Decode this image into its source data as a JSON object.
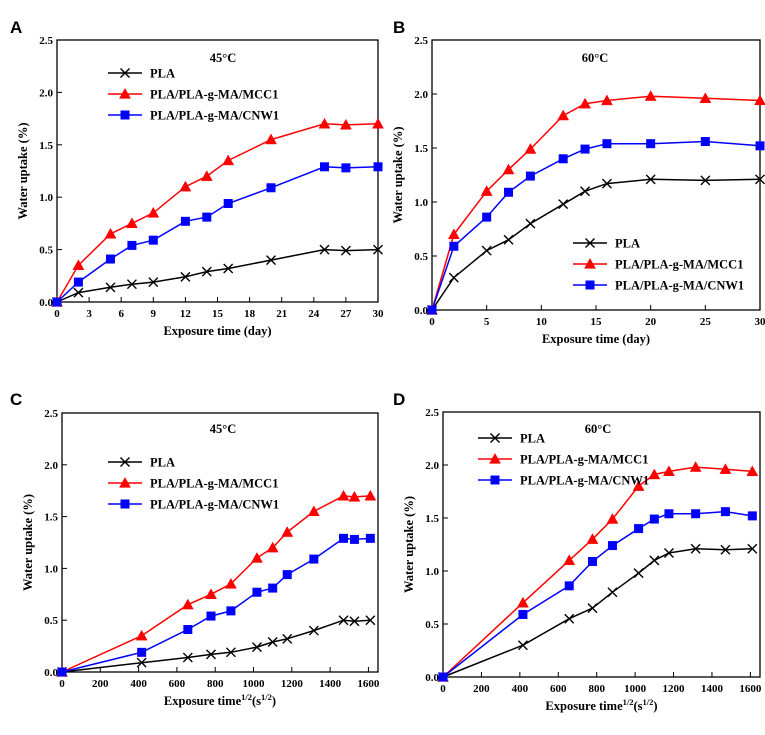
{
  "series_styles": [
    {
      "name": "PLA",
      "color": "#000000",
      "marker": "x-mark"
    },
    {
      "name": "PLA/PLA-g-MA/MCC1",
      "color": "#ff0000",
      "marker": "triangle"
    },
    {
      "name": "PLA/PLA-g-MA/CNW1",
      "color": "#0000ff",
      "marker": "square"
    }
  ],
  "chart_data": [
    {
      "panel": "A",
      "type": "line",
      "title": "45°C",
      "xlabel": "Exposure time (day)",
      "ylabel": "Water uptake (%)",
      "xlim": [
        0,
        30
      ],
      "ylim": [
        0,
        2.5
      ],
      "xticks": [
        "0",
        "3",
        "6",
        "9",
        "12",
        "15",
        "18",
        "21",
        "24",
        "27",
        "30"
      ],
      "yticks": [
        "0.0",
        "0.5",
        "1.0",
        "1.5",
        "2.0",
        "2.5"
      ],
      "legend_position": "top-left",
      "series": [
        {
          "name": "PLA",
          "x": [
            0,
            2,
            5,
            7,
            9,
            12,
            14,
            16,
            20,
            25,
            27,
            30
          ],
          "y": [
            0,
            0.09,
            0.14,
            0.17,
            0.19,
            0.24,
            0.29,
            0.32,
            0.4,
            0.5,
            0.49,
            0.5
          ]
        },
        {
          "name": "PLA/PLA-g-MA/MCC1",
          "x": [
            0,
            2,
            5,
            7,
            9,
            12,
            14,
            16,
            20,
            25,
            27,
            30
          ],
          "y": [
            0,
            0.35,
            0.65,
            0.75,
            0.85,
            1.1,
            1.2,
            1.35,
            1.55,
            1.7,
            1.69,
            1.7
          ]
        },
        {
          "name": "PLA/PLA-g-MA/CNW1",
          "x": [
            0,
            2,
            5,
            7,
            9,
            12,
            14,
            16,
            20,
            25,
            27,
            30
          ],
          "y": [
            0,
            0.19,
            0.41,
            0.54,
            0.59,
            0.77,
            0.81,
            0.94,
            1.09,
            1.29,
            1.28,
            1.29
          ]
        }
      ]
    },
    {
      "panel": "B",
      "type": "line",
      "title": "60°C",
      "xlabel": "Exposure time (day)",
      "ylabel": "Water uptake (%)",
      "xlim": [
        0,
        30
      ],
      "ylim": [
        0,
        2.5
      ],
      "xticks": [
        "0",
        "5",
        "10",
        "15",
        "20",
        "25",
        "30"
      ],
      "yticks": [
        "0.0",
        "0.5",
        "1.0",
        "1.5",
        "2.0",
        "2.5"
      ],
      "legend_position": "bottom-right",
      "series": [
        {
          "name": "PLA",
          "x": [
            0,
            2,
            5,
            7,
            9,
            12,
            14,
            16,
            20,
            25,
            30
          ],
          "y": [
            0,
            0.3,
            0.55,
            0.65,
            0.8,
            0.98,
            1.1,
            1.17,
            1.21,
            1.2,
            1.21
          ]
        },
        {
          "name": "PLA/PLA-g-MA/MCC1",
          "x": [
            0,
            2,
            5,
            7,
            9,
            12,
            14,
            16,
            20,
            25,
            30
          ],
          "y": [
            0,
            0.7,
            1.1,
            1.3,
            1.49,
            1.8,
            1.91,
            1.94,
            1.98,
            1.96,
            1.94
          ]
        },
        {
          "name": "PLA/PLA-g-MA/CNW1",
          "x": [
            0,
            2,
            5,
            7,
            9,
            12,
            14,
            16,
            20,
            25,
            30
          ],
          "y": [
            0,
            0.59,
            0.86,
            1.09,
            1.24,
            1.4,
            1.49,
            1.54,
            1.54,
            1.56,
            1.52
          ]
        }
      ]
    },
    {
      "panel": "C",
      "type": "line",
      "title": "45°C",
      "xlabel": "Exposure time",
      "xlabel_unit": "(s",
      "xlabel_sup": "1/2",
      "xlabel_end": ")",
      "xlabel_sup_time": "1/2",
      "ylabel": "Water uptake (%)",
      "xlim": [
        0,
        1650
      ],
      "ylim": [
        0,
        2.5
      ],
      "xticks": [
        "0",
        "200",
        "400",
        "600",
        "800",
        "1000",
        "1200",
        "1400",
        "1600"
      ],
      "yticks": [
        "0.0",
        "0.5",
        "1.0",
        "1.5",
        "2.0",
        "2.5"
      ],
      "legend_position": "center-left",
      "series": [
        {
          "name": "PLA",
          "x": [
            0,
            416,
            657,
            778,
            882,
            1018,
            1100,
            1176,
            1315,
            1470,
            1527,
            1610
          ],
          "y": [
            0,
            0.09,
            0.14,
            0.17,
            0.19,
            0.24,
            0.29,
            0.32,
            0.4,
            0.5,
            0.49,
            0.5
          ]
        },
        {
          "name": "PLA/PLA-g-MA/MCC1",
          "x": [
            0,
            416,
            657,
            778,
            882,
            1018,
            1100,
            1176,
            1315,
            1470,
            1527,
            1610
          ],
          "y": [
            0,
            0.35,
            0.65,
            0.75,
            0.85,
            1.1,
            1.2,
            1.35,
            1.55,
            1.7,
            1.69,
            1.7
          ]
        },
        {
          "name": "PLA/PLA-g-MA/CNW1",
          "x": [
            0,
            416,
            657,
            778,
            882,
            1018,
            1100,
            1176,
            1315,
            1470,
            1527,
            1610
          ],
          "y": [
            0,
            0.19,
            0.41,
            0.54,
            0.59,
            0.77,
            0.81,
            0.94,
            1.09,
            1.29,
            1.28,
            1.29
          ]
        }
      ]
    },
    {
      "panel": "D",
      "type": "line",
      "title": "60°C",
      "xlabel": "Exposure time",
      "xlabel_unit": "(s",
      "xlabel_sup": "1/2",
      "xlabel_end": ")",
      "xlabel_sup_time": "1/2",
      "ylabel": "Water uptake (%)",
      "xlim": [
        0,
        1650
      ],
      "ylim": [
        0,
        2.5
      ],
      "xticks": [
        "0",
        "200",
        "400",
        "600",
        "800",
        "1000",
        "1200",
        "1400",
        "1600"
      ],
      "yticks": [
        "0.0",
        "0.5",
        "1.0",
        "1.5",
        "2.0",
        "2.5"
      ],
      "legend_position": "top-left",
      "series": [
        {
          "name": "PLA",
          "x": [
            0,
            416,
            657,
            778,
            882,
            1018,
            1100,
            1176,
            1315,
            1470,
            1610
          ],
          "y": [
            0,
            0.3,
            0.55,
            0.65,
            0.8,
            0.98,
            1.1,
            1.17,
            1.21,
            1.2,
            1.21
          ]
        },
        {
          "name": "PLA/PLA-g-MA/MCC1",
          "x": [
            0,
            416,
            657,
            778,
            882,
            1018,
            1100,
            1176,
            1315,
            1470,
            1610
          ],
          "y": [
            0,
            0.7,
            1.1,
            1.3,
            1.49,
            1.8,
            1.91,
            1.94,
            1.98,
            1.96,
            1.94
          ]
        },
        {
          "name": "PLA/PLA-g-MA/CNW1",
          "x": [
            0,
            416,
            657,
            778,
            882,
            1018,
            1100,
            1176,
            1315,
            1470,
            1610
          ],
          "y": [
            0,
            0.59,
            0.86,
            1.09,
            1.24,
            1.4,
            1.49,
            1.54,
            1.54,
            1.56,
            1.52
          ]
        }
      ]
    }
  ]
}
